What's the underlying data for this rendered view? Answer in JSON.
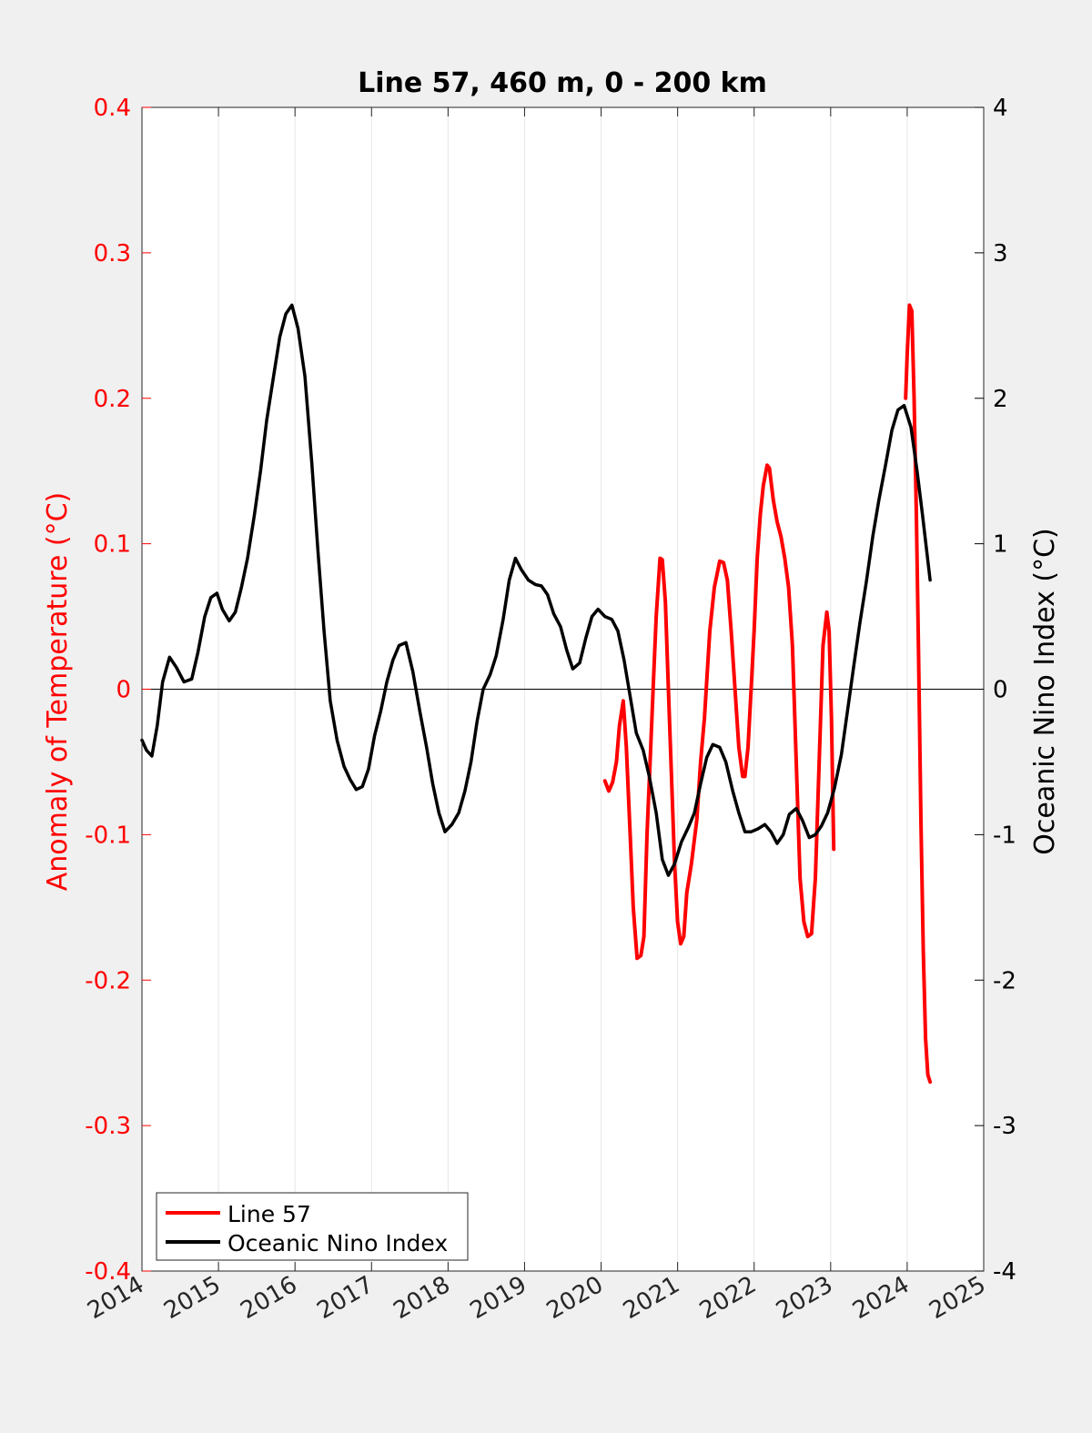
{
  "chart_data": {
    "type": "line",
    "title": "Line 57, 460 m, 0 - 200 km",
    "ylabel_left": "Anomaly of Temperature (°C)",
    "ylabel_right": "Oceanic Nino Index (°C)",
    "xlabel": "",
    "xlim": [
      2014,
      2025
    ],
    "ylim_left": [
      -0.4,
      0.4
    ],
    "ylim_right": [
      -4,
      4
    ],
    "x_ticks": [
      "2014",
      "2015",
      "2016",
      "2017",
      "2018",
      "2019",
      "2020",
      "2021",
      "2022",
      "2023",
      "2024",
      "2025"
    ],
    "y_ticks_left": [
      "-0.4",
      "-0.3",
      "-0.2",
      "-0.1",
      "0",
      "0.1",
      "0.2",
      "0.3",
      "0.4"
    ],
    "y_ticks_right": [
      "-4",
      "-3",
      "-2",
      "-1",
      "0",
      "1",
      "2",
      "3",
      "4"
    ],
    "grid": "vertical",
    "legend_position": "bottom-left",
    "colors": {
      "line57": "#ff0000",
      "oni": "#000000",
      "left_axis": "#ff0000",
      "right_axis": "#000000"
    },
    "series": [
      {
        "name": "Line 57",
        "axis": "left",
        "segments": [
          [
            [
              2020.05,
              -0.063
            ],
            [
              2020.1,
              -0.07
            ],
            [
              2020.15,
              -0.064
            ],
            [
              2020.2,
              -0.05
            ],
            [
              2020.24,
              -0.025
            ],
            [
              2020.29,
              -0.008
            ],
            [
              2020.33,
              -0.04
            ],
            [
              2020.38,
              -0.1
            ],
            [
              2020.42,
              -0.15
            ],
            [
              2020.47,
              -0.185
            ],
            [
              2020.52,
              -0.183
            ],
            [
              2020.56,
              -0.17
            ],
            [
              2020.6,
              -0.1
            ],
            [
              2020.64,
              -0.05
            ],
            [
              2020.68,
              0.0
            ],
            [
              2020.72,
              0.05
            ],
            [
              2020.77,
              0.09
            ],
            [
              2020.8,
              0.089
            ],
            [
              2020.84,
              0.06
            ],
            [
              2020.88,
              0.0
            ],
            [
              2020.92,
              -0.06
            ],
            [
              2020.96,
              -0.12
            ],
            [
              2021.0,
              -0.16
            ],
            [
              2021.04,
              -0.175
            ],
            [
              2021.08,
              -0.17
            ],
            [
              2021.12,
              -0.14
            ],
            [
              2021.18,
              -0.12
            ],
            [
              2021.25,
              -0.09
            ],
            [
              2021.3,
              -0.05
            ],
            [
              2021.35,
              -0.02
            ],
            [
              2021.42,
              0.04
            ],
            [
              2021.48,
              0.07
            ],
            [
              2021.55,
              0.088
            ],
            [
              2021.6,
              0.087
            ],
            [
              2021.65,
              0.075
            ],
            [
              2021.7,
              0.04
            ],
            [
              2021.75,
              0.0
            ],
            [
              2021.8,
              -0.04
            ],
            [
              2021.85,
              -0.06
            ],
            [
              2021.88,
              -0.06
            ],
            [
              2021.92,
              -0.04
            ],
            [
              2021.96,
              0.0
            ],
            [
              2022.0,
              0.04
            ],
            [
              2022.04,
              0.09
            ],
            [
              2022.08,
              0.12
            ],
            [
              2022.12,
              0.14
            ],
            [
              2022.17,
              0.154
            ],
            [
              2022.2,
              0.152
            ],
            [
              2022.25,
              0.13
            ],
            [
              2022.3,
              0.115
            ],
            [
              2022.35,
              0.105
            ],
            [
              2022.4,
              0.09
            ],
            [
              2022.45,
              0.07
            ],
            [
              2022.5,
              0.03
            ],
            [
              2022.55,
              -0.05
            ],
            [
              2022.6,
              -0.13
            ],
            [
              2022.65,
              -0.16
            ],
            [
              2022.7,
              -0.17
            ],
            [
              2022.75,
              -0.168
            ],
            [
              2022.8,
              -0.13
            ],
            [
              2022.85,
              -0.05
            ],
            [
              2022.9,
              0.03
            ],
            [
              2022.95,
              0.053
            ],
            [
              2022.98,
              0.04
            ],
            [
              2023.01,
              -0.02
            ],
            [
              2023.04,
              -0.11
            ]
          ],
          [
            [
              2023.98,
              0.2
            ],
            [
              2024.0,
              0.23
            ],
            [
              2024.03,
              0.264
            ],
            [
              2024.06,
              0.26
            ],
            [
              2024.09,
              0.2
            ],
            [
              2024.12,
              0.12
            ],
            [
              2024.15,
              0.02
            ],
            [
              2024.18,
              -0.09
            ],
            [
              2024.21,
              -0.18
            ],
            [
              2024.24,
              -0.24
            ],
            [
              2024.27,
              -0.265
            ],
            [
              2024.3,
              -0.27
            ]
          ]
        ]
      },
      {
        "name": "Oceanic Nino Index",
        "axis": "right",
        "segments": [
          [
            [
              2014.0,
              -0.35
            ],
            [
              2014.06,
              -0.42
            ],
            [
              2014.13,
              -0.46
            ],
            [
              2014.2,
              -0.25
            ],
            [
              2014.27,
              0.05
            ],
            [
              2014.36,
              0.22
            ],
            [
              2014.45,
              0.15
            ],
            [
              2014.55,
              0.05
            ],
            [
              2014.65,
              0.07
            ],
            [
              2014.73,
              0.25
            ],
            [
              2014.82,
              0.5
            ],
            [
              2014.9,
              0.63
            ],
            [
              2014.98,
              0.66
            ],
            [
              2015.05,
              0.55
            ],
            [
              2015.14,
              0.47
            ],
            [
              2015.22,
              0.53
            ],
            [
              2015.3,
              0.7
            ],
            [
              2015.38,
              0.9
            ],
            [
              2015.47,
              1.2
            ],
            [
              2015.55,
              1.5
            ],
            [
              2015.63,
              1.85
            ],
            [
              2015.72,
              2.15
            ],
            [
              2015.8,
              2.42
            ],
            [
              2015.88,
              2.58
            ],
            [
              2015.96,
              2.64
            ],
            [
              2016.04,
              2.48
            ],
            [
              2016.13,
              2.15
            ],
            [
              2016.22,
              1.55
            ],
            [
              2016.3,
              0.95
            ],
            [
              2016.38,
              0.4
            ],
            [
              2016.46,
              -0.08
            ],
            [
              2016.55,
              -0.35
            ],
            [
              2016.64,
              -0.53
            ],
            [
              2016.72,
              -0.62
            ],
            [
              2016.8,
              -0.69
            ],
            [
              2016.88,
              -0.67
            ],
            [
              2016.96,
              -0.55
            ],
            [
              2017.04,
              -0.32
            ],
            [
              2017.12,
              -0.15
            ],
            [
              2017.2,
              0.05
            ],
            [
              2017.28,
              0.2
            ],
            [
              2017.36,
              0.3
            ],
            [
              2017.45,
              0.32
            ],
            [
              2017.54,
              0.12
            ],
            [
              2017.63,
              -0.15
            ],
            [
              2017.72,
              -0.4
            ],
            [
              2017.8,
              -0.65
            ],
            [
              2017.88,
              -0.85
            ],
            [
              2017.96,
              -0.98
            ],
            [
              2018.05,
              -0.93
            ],
            [
              2018.14,
              -0.85
            ],
            [
              2018.22,
              -0.7
            ],
            [
              2018.3,
              -0.5
            ],
            [
              2018.38,
              -0.22
            ],
            [
              2018.46,
              0.0
            ],
            [
              2018.55,
              0.1
            ],
            [
              2018.63,
              0.23
            ],
            [
              2018.72,
              0.48
            ],
            [
              2018.8,
              0.75
            ],
            [
              2018.88,
              0.9
            ],
            [
              2018.96,
              0.82
            ],
            [
              2019.05,
              0.75
            ],
            [
              2019.14,
              0.72
            ],
            [
              2019.22,
              0.71
            ],
            [
              2019.3,
              0.65
            ],
            [
              2019.38,
              0.52
            ],
            [
              2019.47,
              0.43
            ],
            [
              2019.55,
              0.27
            ],
            [
              2019.63,
              0.14
            ],
            [
              2019.72,
              0.18
            ],
            [
              2019.8,
              0.35
            ],
            [
              2019.88,
              0.5
            ],
            [
              2019.96,
              0.55
            ],
            [
              2020.05,
              0.5
            ],
            [
              2020.14,
              0.48
            ],
            [
              2020.22,
              0.4
            ],
            [
              2020.3,
              0.2
            ],
            [
              2020.38,
              -0.05
            ],
            [
              2020.46,
              -0.3
            ],
            [
              2020.55,
              -0.42
            ],
            [
              2020.63,
              -0.6
            ],
            [
              2020.72,
              -0.85
            ],
            [
              2020.8,
              -1.17
            ],
            [
              2020.88,
              -1.28
            ],
            [
              2020.96,
              -1.2
            ],
            [
              2021.05,
              -1.05
            ],
            [
              2021.14,
              -0.95
            ],
            [
              2021.22,
              -0.85
            ],
            [
              2021.3,
              -0.65
            ],
            [
              2021.38,
              -0.47
            ],
            [
              2021.46,
              -0.38
            ],
            [
              2021.55,
              -0.4
            ],
            [
              2021.63,
              -0.5
            ],
            [
              2021.72,
              -0.7
            ],
            [
              2021.8,
              -0.85
            ],
            [
              2021.88,
              -0.98
            ],
            [
              2021.96,
              -0.98
            ],
            [
              2022.05,
              -0.96
            ],
            [
              2022.14,
              -0.93
            ],
            [
              2022.22,
              -0.98
            ],
            [
              2022.3,
              -1.06
            ],
            [
              2022.38,
              -1.0
            ],
            [
              2022.46,
              -0.86
            ],
            [
              2022.55,
              -0.82
            ],
            [
              2022.63,
              -0.9
            ],
            [
              2022.72,
              -1.02
            ],
            [
              2022.8,
              -1.0
            ],
            [
              2022.88,
              -0.94
            ],
            [
              2022.96,
              -0.85
            ],
            [
              2023.05,
              -0.68
            ],
            [
              2023.14,
              -0.45
            ],
            [
              2023.22,
              -0.15
            ],
            [
              2023.3,
              0.15
            ],
            [
              2023.38,
              0.45
            ],
            [
              2023.47,
              0.75
            ],
            [
              2023.55,
              1.05
            ],
            [
              2023.63,
              1.3
            ],
            [
              2023.72,
              1.55
            ],
            [
              2023.8,
              1.78
            ],
            [
              2023.88,
              1.92
            ],
            [
              2023.96,
              1.95
            ],
            [
              2024.05,
              1.8
            ],
            [
              2024.13,
              1.5
            ],
            [
              2024.2,
              1.2
            ],
            [
              2024.3,
              0.75
            ]
          ]
        ]
      }
    ]
  }
}
